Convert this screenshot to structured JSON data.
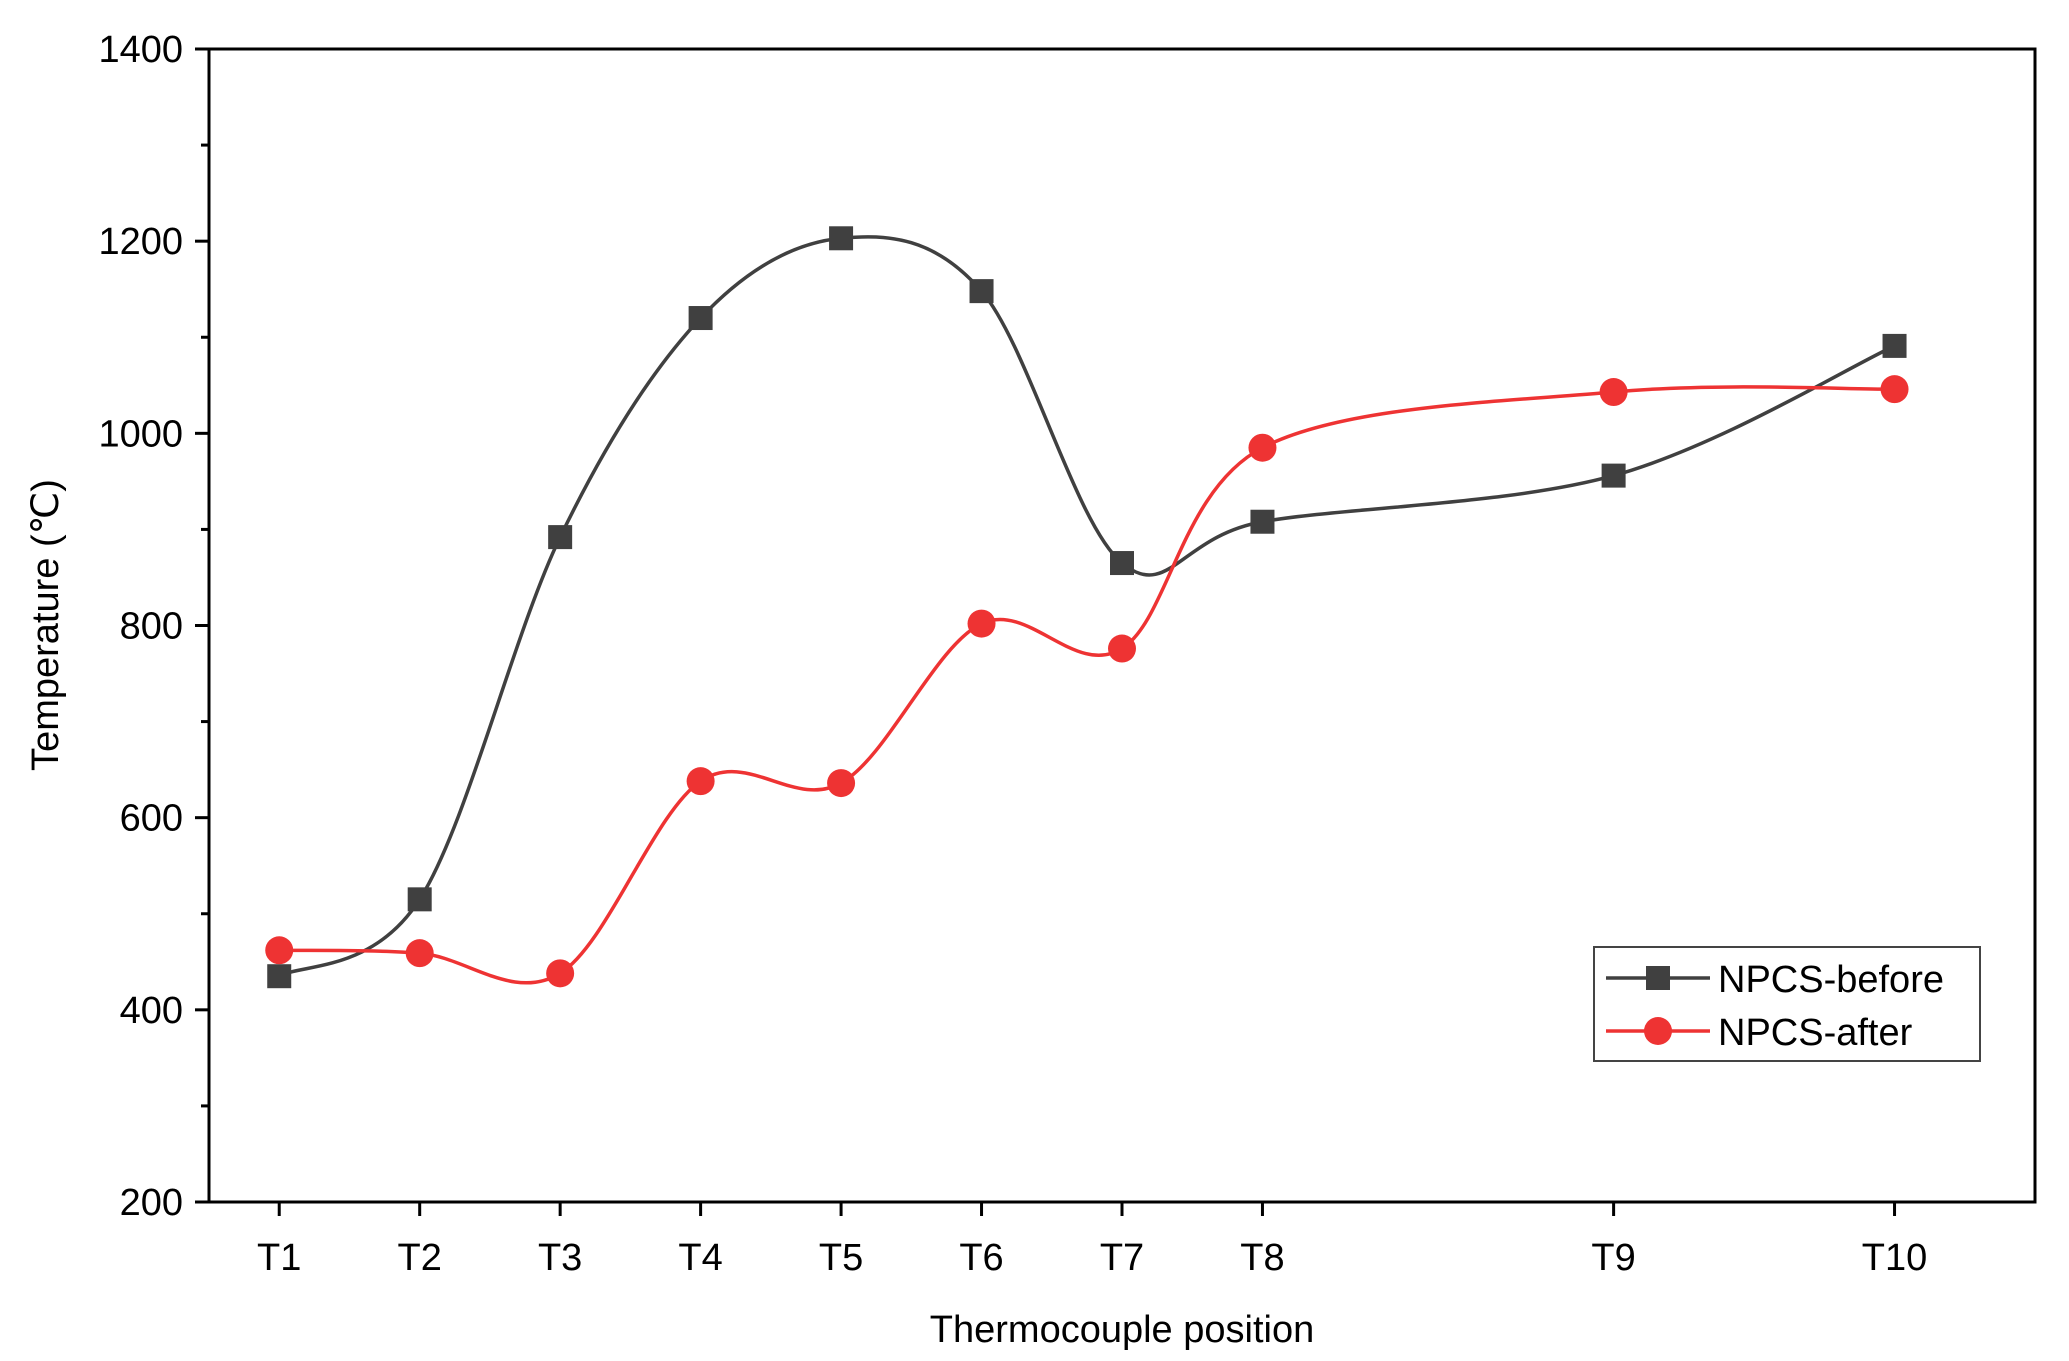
{
  "chart_data": {
    "type": "line",
    "title": "",
    "xlabel": "Thermocouple position",
    "ylabel": "Temperature (℃)",
    "x_tick_labels": [
      "T1",
      "T2",
      "T3",
      "T4",
      "T5",
      "T6",
      "T7",
      "T8",
      "T9",
      "T10"
    ],
    "x_positions": [
      1,
      2,
      3,
      4,
      5,
      6,
      7,
      8,
      10.5,
      12.5
    ],
    "xlim": [
      0.5,
      13.5
    ],
    "ylim": [
      200,
      1400
    ],
    "y_ticks": [
      200,
      400,
      600,
      800,
      1000,
      1200,
      1400
    ],
    "y_tick_labels": [
      "200",
      "400",
      "600",
      "800",
      "1000",
      "1200",
      "1400"
    ],
    "grid": false,
    "legend_position": "bottom-right",
    "smooth": true,
    "series": [
      {
        "name": "NPCS-before",
        "color": "#404040",
        "marker": "square",
        "values": [
          435,
          515,
          892,
          1120,
          1203,
          1148,
          865,
          908,
          956,
          1091
        ]
      },
      {
        "name": "NPCS-after",
        "color": "#ee3333",
        "marker": "circle",
        "values": [
          462,
          459,
          438,
          638,
          636,
          802,
          776,
          985,
          1043,
          1046
        ]
      }
    ]
  }
}
